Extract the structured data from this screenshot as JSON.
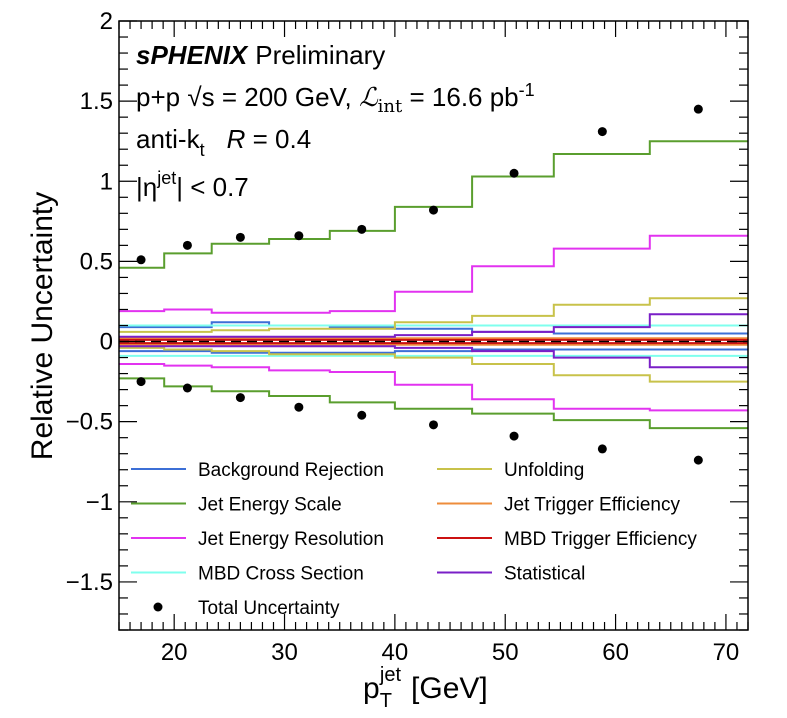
{
  "chart_data": {
    "type": "line",
    "xlabel": "p_T^jet [GeV]",
    "xlabel_main": "p",
    "xlabel_sub": "T",
    "xlabel_sup": "jet",
    "xlabel_unit": "[GeV]",
    "ylabel": "Relative Uncertainty",
    "xlim": [
      15,
      72
    ],
    "ylim": [
      -1.8,
      2.0
    ],
    "x_ticks": [
      20,
      30,
      40,
      50,
      60,
      70
    ],
    "y_ticks": [
      -1.5,
      -1,
      -0.5,
      0,
      0.5,
      1,
      1.5,
      2
    ],
    "y_tick_labels": [
      "−1.5",
      "−1",
      "−0.5",
      "0",
      "0.5",
      "1",
      "1.5",
      "2"
    ],
    "x_tick_labels": [
      "20",
      "30",
      "40",
      "50",
      "60",
      "70"
    ],
    "grid": false,
    "legend_placement": "bottom",
    "annotations": {
      "experiment": "sPHENIX",
      "status": "Preliminary",
      "line2": "p+p √s = 200 GeV, ℒint = 16.6 pb-1",
      "line2_parts": {
        "a": "p+p ",
        "b": "s = 200 GeV, ",
        "c": "ℒ",
        "d": "int",
        "e": " = 16.6 pb",
        "f": "-1"
      },
      "line3_parts": {
        "a": "anti-k",
        "b": "t",
        "c": "R",
        "d": " = 0.4"
      },
      "line4_parts": {
        "a": "|η",
        "b": "jet",
        "c": "| < 0.7"
      }
    },
    "bin_edges": [
      15,
      19.1,
      23.4,
      28.6,
      34.1,
      40.0,
      47.0,
      54.4,
      63.1,
      72.0
    ],
    "series": [
      {
        "name": "Background Rejection",
        "color": "#3c6fd6",
        "up": [
          0.09,
          0.09,
          0.12,
          0.1,
          0.09,
          0.08,
          0.06,
          0.05,
          0.05
        ],
        "down": [
          -0.06,
          -0.06,
          -0.07,
          -0.07,
          -0.07,
          -0.06,
          -0.05,
          -0.05,
          -0.05
        ]
      },
      {
        "name": "Jet Energy Scale",
        "color": "#5a9e2e",
        "up": [
          0.46,
          0.55,
          0.61,
          0.64,
          0.69,
          0.84,
          1.03,
          1.17,
          1.25
        ],
        "down": [
          -0.23,
          -0.28,
          -0.31,
          -0.34,
          -0.38,
          -0.42,
          -0.45,
          -0.49,
          -0.54
        ]
      },
      {
        "name": "Jet Energy Resolution",
        "color": "#e233f0",
        "up": [
          0.19,
          0.2,
          0.18,
          0.18,
          0.19,
          0.31,
          0.47,
          0.58,
          0.66
        ],
        "down": [
          -0.14,
          -0.15,
          -0.16,
          -0.18,
          -0.19,
          -0.27,
          -0.36,
          -0.42,
          -0.43
        ]
      },
      {
        "name": "MBD Cross Section",
        "color": "#7fffee",
        "up": [
          0.1,
          0.1,
          0.1,
          0.1,
          0.1,
          0.1,
          0.1,
          0.1,
          0.1
        ],
        "down": [
          -0.09,
          -0.09,
          -0.09,
          -0.09,
          -0.09,
          -0.09,
          -0.09,
          -0.09,
          -0.09
        ]
      },
      {
        "name": "Unfolding",
        "color": "#c8c24a",
        "up": [
          0.06,
          0.06,
          0.07,
          0.08,
          0.08,
          0.12,
          0.16,
          0.23,
          0.27
        ],
        "down": [
          -0.04,
          -0.05,
          -0.06,
          -0.08,
          -0.08,
          -0.1,
          -0.14,
          -0.21,
          -0.25
        ]
      },
      {
        "name": "Jet Trigger Efficiency",
        "color": "#ee8c3b",
        "up": [
          0.02,
          0.02,
          0.02,
          0.02,
          0.02,
          0.02,
          0.02,
          0.02,
          0.02
        ],
        "down": [
          -0.02,
          -0.02,
          -0.02,
          -0.02,
          -0.02,
          -0.02,
          -0.02,
          -0.02,
          -0.02
        ]
      },
      {
        "name": "MBD Trigger Efficiency",
        "color": "#cc1111",
        "up": [
          0.01,
          0.01,
          0.01,
          0.01,
          0.01,
          0.01,
          0.01,
          0.01,
          0.01
        ],
        "down": [
          -0.01,
          -0.01,
          -0.01,
          -0.01,
          -0.01,
          -0.01,
          -0.01,
          -0.01,
          -0.01
        ]
      },
      {
        "name": "Statistical",
        "color": "#7a1fc7",
        "up": [
          0.03,
          0.03,
          0.03,
          0.03,
          0.03,
          0.04,
          0.06,
          0.09,
          0.17
        ],
        "down": [
          -0.03,
          -0.03,
          -0.03,
          -0.03,
          -0.03,
          -0.04,
          -0.06,
          -0.1,
          -0.16
        ]
      }
    ],
    "total": {
      "name": "Total Uncertainty",
      "color": "#000000",
      "x": [
        17.0,
        21.2,
        26.0,
        31.3,
        37.0,
        43.5,
        50.8,
        58.8,
        67.5
      ],
      "up": [
        0.51,
        0.6,
        0.65,
        0.66,
        0.7,
        0.82,
        1.05,
        1.31,
        1.45
      ],
      "down": [
        -0.25,
        -0.29,
        -0.35,
        -0.41,
        -0.46,
        -0.52,
        -0.59,
        -0.67,
        -0.74
      ]
    },
    "legend_columns": [
      [
        "Background Rejection",
        "Jet Energy Scale",
        "Jet Energy Resolution",
        "MBD Cross Section",
        "Total Uncertainty"
      ],
      [
        "Unfolding",
        "Jet Trigger Efficiency",
        "MBD Trigger Efficiency",
        "Statistical"
      ]
    ]
  }
}
